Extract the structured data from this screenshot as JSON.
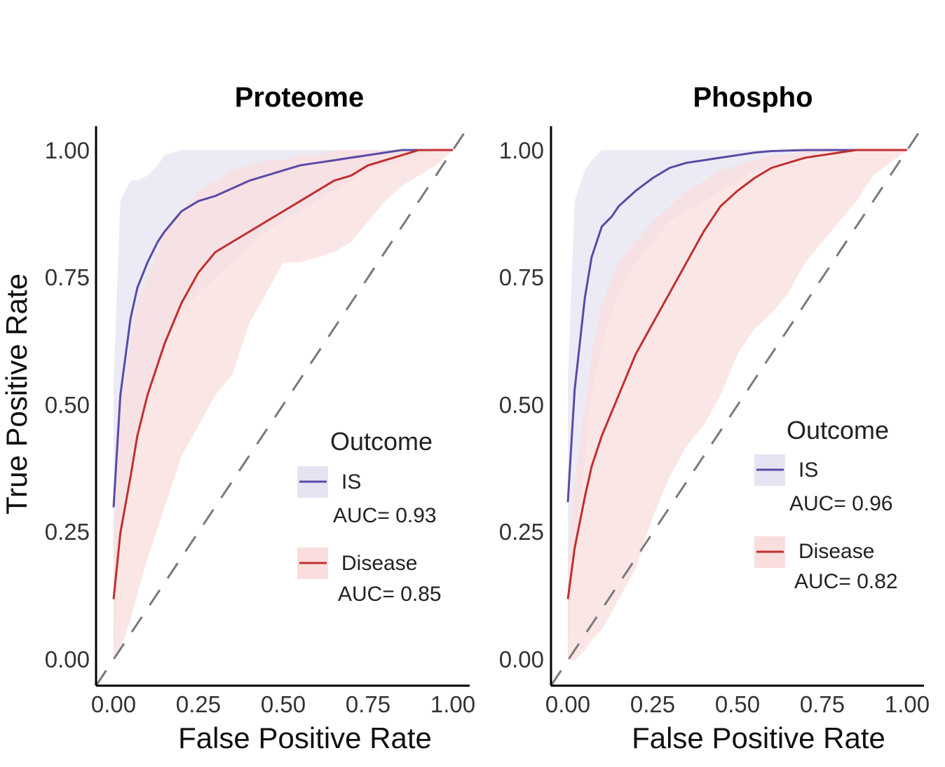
{
  "chart_data": [
    {
      "type": "line",
      "title": "Proteome",
      "xlabel": "False Positive Rate",
      "ylabel": "True Positive Rate",
      "xlim": [
        0,
        1
      ],
      "ylim": [
        0,
        1
      ],
      "x_ticks": [
        "0.00",
        "0.25",
        "0.50",
        "0.75",
        "1.00"
      ],
      "y_ticks": [
        "0.00",
        "0.25",
        "0.50",
        "0.75",
        "1.00"
      ],
      "legend_title": "Outcome",
      "reference_line": "diagonal dashed",
      "series": [
        {
          "name": "IS",
          "auc_label": "AUC= 0.93",
          "color": "#5a4aa6",
          "band_color": "#e6e4f2",
          "x": [
            0,
            0.02,
            0.05,
            0.07,
            0.1,
            0.13,
            0.15,
            0.2,
            0.25,
            0.3,
            0.35,
            0.4,
            0.45,
            0.5,
            0.55,
            0.6,
            0.65,
            0.7,
            0.75,
            0.8,
            0.85,
            0.9,
            0.95,
            1.0
          ],
          "y": [
            0.3,
            0.52,
            0.67,
            0.73,
            0.78,
            0.82,
            0.84,
            0.88,
            0.9,
            0.91,
            0.925,
            0.94,
            0.95,
            0.96,
            0.97,
            0.975,
            0.98,
            0.985,
            0.99,
            0.995,
            1.0,
            1.0,
            1.0,
            1.0
          ],
          "lower": [
            0.0,
            0.27,
            0.38,
            0.45,
            0.52,
            0.58,
            0.62,
            0.68,
            0.72,
            0.75,
            0.78,
            0.81,
            0.84,
            0.86,
            0.88,
            0.9,
            0.92,
            0.94,
            0.96,
            0.97,
            0.98,
            0.99,
            1.0,
            1.0
          ],
          "upper": [
            0.55,
            0.9,
            0.94,
            0.94,
            0.95,
            0.97,
            0.99,
            1.0,
            1.0,
            1.0,
            1.0,
            1.0,
            1.0,
            1.0,
            1.0,
            1.0,
            1.0,
            1.0,
            1.0,
            1.0,
            1.0,
            1.0,
            1.0,
            1.0
          ]
        },
        {
          "name": "Disease",
          "auc_label": "AUC= 0.85",
          "color": "#c0302e",
          "band_color": "#f9dedd",
          "x": [
            0,
            0.02,
            0.05,
            0.07,
            0.1,
            0.13,
            0.15,
            0.2,
            0.25,
            0.3,
            0.35,
            0.4,
            0.45,
            0.5,
            0.55,
            0.6,
            0.65,
            0.7,
            0.75,
            0.8,
            0.85,
            0.9,
            0.95,
            1.0
          ],
          "y": [
            0.12,
            0.25,
            0.36,
            0.44,
            0.52,
            0.58,
            0.62,
            0.7,
            0.76,
            0.8,
            0.82,
            0.84,
            0.86,
            0.88,
            0.9,
            0.92,
            0.94,
            0.95,
            0.97,
            0.98,
            0.99,
            1.0,
            1.0,
            1.0
          ],
          "lower": [
            0.0,
            0.02,
            0.08,
            0.13,
            0.2,
            0.26,
            0.3,
            0.4,
            0.46,
            0.52,
            0.56,
            0.66,
            0.72,
            0.78,
            0.78,
            0.79,
            0.8,
            0.82,
            0.86,
            0.9,
            0.93,
            0.95,
            0.97,
            1.0
          ],
          "upper": [
            0.25,
            0.5,
            0.62,
            0.7,
            0.75,
            0.8,
            0.84,
            0.88,
            0.92,
            0.94,
            0.96,
            0.97,
            0.98,
            0.98,
            0.99,
            0.99,
            1.0,
            1.0,
            1.0,
            1.0,
            1.0,
            1.0,
            1.0,
            1.0
          ]
        }
      ]
    },
    {
      "type": "line",
      "title": "Phospho",
      "xlabel": "False Positive Rate",
      "ylabel": "",
      "xlim": [
        0,
        1
      ],
      "ylim": [
        0,
        1
      ],
      "x_ticks": [
        "0.00",
        "0.25",
        "0.50",
        "0.75",
        "1.00"
      ],
      "y_ticks": [
        "0.00",
        "0.25",
        "0.50",
        "0.75",
        "1.00"
      ],
      "legend_title": "Outcome",
      "reference_line": "diagonal dashed",
      "series": [
        {
          "name": "IS",
          "auc_label": "AUC= 0.96",
          "color": "#5a4aa6",
          "band_color": "#e6e4f2",
          "x": [
            0,
            0.02,
            0.05,
            0.07,
            0.1,
            0.13,
            0.15,
            0.2,
            0.25,
            0.3,
            0.35,
            0.4,
            0.45,
            0.5,
            0.55,
            0.6,
            0.7,
            0.8,
            0.85,
            0.9,
            1.0
          ],
          "y": [
            0.31,
            0.53,
            0.71,
            0.79,
            0.85,
            0.87,
            0.89,
            0.92,
            0.945,
            0.965,
            0.975,
            0.98,
            0.985,
            0.99,
            0.995,
            0.998,
            1.0,
            1.0,
            1.0,
            1.0,
            1.0
          ],
          "lower": [
            0.0,
            0.2,
            0.4,
            0.52,
            0.62,
            0.68,
            0.72,
            0.78,
            0.82,
            0.86,
            0.88,
            0.9,
            0.92,
            0.94,
            0.96,
            0.97,
            0.99,
            1.0,
            1.0,
            1.0,
            1.0
          ],
          "upper": [
            0.55,
            0.9,
            0.96,
            0.98,
            1.0,
            1.0,
            1.0,
            1.0,
            1.0,
            1.0,
            1.0,
            1.0,
            1.0,
            1.0,
            1.0,
            1.0,
            1.0,
            1.0,
            1.0,
            1.0,
            1.0
          ]
        },
        {
          "name": "Disease",
          "auc_label": "AUC= 0.82",
          "color": "#c0302e",
          "band_color": "#f9dedd",
          "x": [
            0,
            0.02,
            0.05,
            0.07,
            0.1,
            0.15,
            0.2,
            0.25,
            0.3,
            0.35,
            0.4,
            0.45,
            0.5,
            0.55,
            0.6,
            0.65,
            0.7,
            0.75,
            0.8,
            0.85,
            0.9,
            1.0
          ],
          "y": [
            0.12,
            0.22,
            0.32,
            0.38,
            0.44,
            0.52,
            0.6,
            0.66,
            0.72,
            0.78,
            0.84,
            0.89,
            0.92,
            0.945,
            0.965,
            0.975,
            0.985,
            0.99,
            0.995,
            1.0,
            1.0,
            1.0
          ],
          "lower": [
            0.0,
            0.0,
            0.02,
            0.04,
            0.06,
            0.12,
            0.18,
            0.28,
            0.36,
            0.42,
            0.46,
            0.52,
            0.6,
            0.65,
            0.68,
            0.72,
            0.78,
            0.82,
            0.86,
            0.9,
            0.95,
            1.0
          ],
          "upper": [
            0.2,
            0.35,
            0.5,
            0.6,
            0.7,
            0.78,
            0.82,
            0.86,
            0.89,
            0.92,
            0.94,
            0.96,
            0.97,
            0.98,
            0.99,
            0.99,
            1.0,
            1.0,
            1.0,
            1.0,
            1.0,
            1.0
          ]
        }
      ]
    }
  ]
}
